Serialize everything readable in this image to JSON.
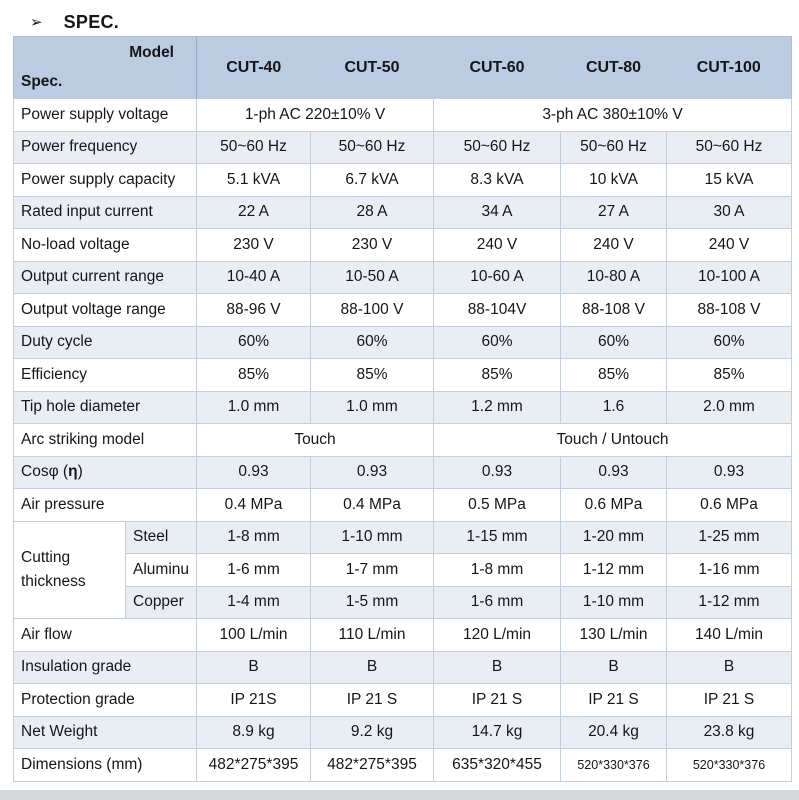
{
  "page_title": {
    "bullet": "➢",
    "text": "SPEC."
  },
  "theme": {
    "header_bg": "#b9cce2",
    "stripe_bg": "#e9eef4",
    "border": "#c2cedb",
    "text": "#161616"
  },
  "table": {
    "corner": {
      "model": "Model",
      "spec": "Spec."
    },
    "columns": [
      "CUT-40",
      "CUT-50",
      "CUT-60",
      "CUT-80",
      "CUT-100"
    ],
    "rows": [
      {
        "label": "Power supply voltage",
        "spans": [
          {
            "text": "1-ph AC 220±10% V",
            "cols": 2
          },
          {
            "text": "3-ph AC 380±10% V",
            "cols": 3
          }
        ]
      },
      {
        "label": "Power frequency",
        "values": [
          "50~60 Hz",
          "50~60 Hz",
          "50~60 Hz",
          "50~60 Hz",
          "50~60 Hz"
        ]
      },
      {
        "label": "Power supply capacity",
        "values": [
          "5.1 kVA",
          "6.7 kVA",
          "8.3 kVA",
          "10 kVA",
          "15 kVA"
        ]
      },
      {
        "label": "Rated input current",
        "values": [
          "22 A",
          "28 A",
          "34 A",
          "27 A",
          "30 A"
        ]
      },
      {
        "label": "No-load voltage",
        "values": [
          "230 V",
          "230 V",
          "240 V",
          "240 V",
          "240 V"
        ]
      },
      {
        "label": "Output current range",
        "values": [
          "10-40 A",
          "10-50 A",
          "10-60 A",
          "10-80 A",
          "10-100 A"
        ]
      },
      {
        "label": "Output voltage range",
        "values": [
          "88-96 V",
          "88-100 V",
          "88-104V",
          "88-108 V",
          "88-108 V"
        ]
      },
      {
        "label": "Duty cycle",
        "values": [
          "60%",
          "60%",
          "60%",
          "60%",
          "60%"
        ]
      },
      {
        "label": "Efficiency",
        "values": [
          "85%",
          "85%",
          "85%",
          "85%",
          "85%"
        ]
      },
      {
        "label": "Tip hole diameter",
        "values": [
          "1.0 mm",
          "1.0 mm",
          "1.2 mm",
          "1.6",
          "2.0 mm"
        ]
      },
      {
        "label": "Arc striking model",
        "spans": [
          {
            "text": "Touch",
            "cols": 2
          },
          {
            "text": "Touch / Untouch",
            "cols": 3
          }
        ]
      },
      {
        "label": "Cosφ (η)",
        "label_rich": [
          {
            "t": "Cosφ ("
          },
          {
            "t": "η",
            "b": true
          },
          {
            "t": ")"
          }
        ],
        "values": [
          "0.93",
          "0.93",
          "0.93",
          "0.93",
          "0.93"
        ]
      },
      {
        "label": "Air pressure",
        "values": [
          "0.4 MPa",
          "0.4 MPa",
          "0.5 MPa",
          "0.6 MPa",
          "0.6 MPa"
        ]
      },
      {
        "type": "group",
        "group": "Cutting thickness",
        "subrows": [
          {
            "label": "Steel",
            "values": [
              "1-8 mm",
              "1-10 mm",
              "1-15 mm",
              "1-20 mm",
              "1-25 mm"
            ]
          },
          {
            "label": "Aluminu",
            "values": [
              "1-6 mm",
              "1-7 mm",
              "1-8 mm",
              "1-12 mm",
              "1-16 mm"
            ]
          },
          {
            "label": "Copper",
            "values": [
              "1-4 mm",
              "1-5 mm",
              "1-6 mm",
              "1-10 mm",
              "1-12 mm"
            ]
          }
        ]
      },
      {
        "label": "Air flow",
        "values": [
          "100 L/min",
          "110 L/min",
          "120 L/min",
          "130 L/min",
          "140 L/min"
        ]
      },
      {
        "label": "Insulation grade",
        "values": [
          "B",
          "B",
          "B",
          "B",
          "B"
        ]
      },
      {
        "label": "Protection grade",
        "values": [
          "IP 21S",
          "IP 21 S",
          "IP 21 S",
          "IP 21 S",
          "IP 21 S"
        ]
      },
      {
        "label": "Net Weight",
        "values": [
          "8.9 kg",
          "9.2 kg",
          "14.7 kg",
          "20.4 kg",
          "23.8 kg"
        ]
      },
      {
        "label": "Dimensions (mm)",
        "values": [
          "482*275*395",
          "482*275*395",
          "635*320*455",
          "520*330*376",
          "520*330*376"
        ],
        "small_cols": [
          3,
          4
        ]
      }
    ]
  }
}
